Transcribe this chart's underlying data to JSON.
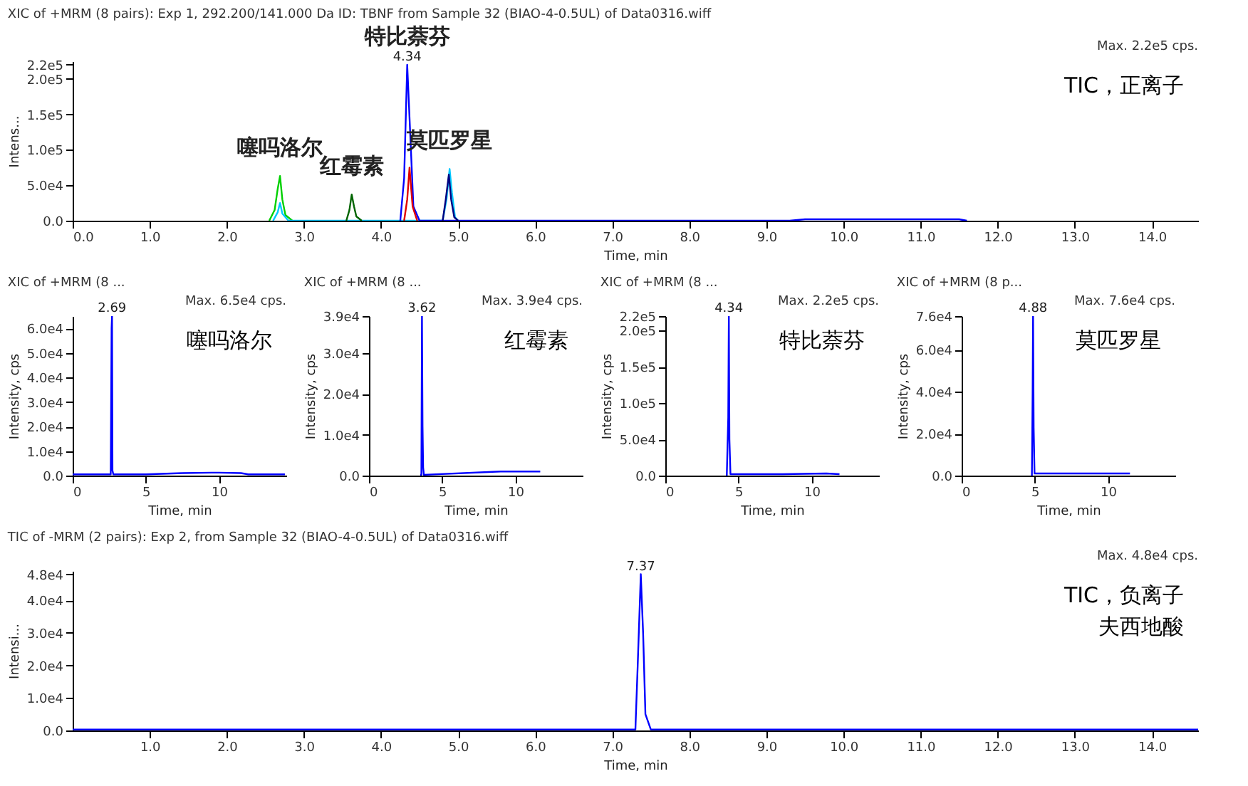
{
  "chart_data": [
    {
      "type": "line",
      "title": "XIC of +MRM (8 pairs): Exp 1, 292.200/141.000 Da ID: TBNF from Sample 32 (BIAO-4-0.5UL) of Data0316.wiff",
      "xlabel": "Time, min",
      "ylabel": "Intens...",
      "xlim": [
        0,
        14.6
      ],
      "xticks": [
        {
          "value": 0,
          "label": "0.0"
        },
        {
          "value": 1,
          "label": "1.0"
        },
        {
          "value": 2,
          "label": "2.0"
        },
        {
          "value": 3,
          "label": "3.0"
        },
        {
          "value": 4,
          "label": "4.0"
        },
        {
          "value": 5,
          "label": "5.0"
        },
        {
          "value": 6,
          "label": "6.0"
        },
        {
          "value": 7,
          "label": "7.0"
        },
        {
          "value": 8,
          "label": "8.0"
        },
        {
          "value": 9,
          "label": "9.0"
        },
        {
          "value": 10,
          "label": "10.0"
        },
        {
          "value": 11,
          "label": "11.0"
        },
        {
          "value": 12,
          "label": "12.0"
        },
        {
          "value": 13,
          "label": "13.0"
        },
        {
          "value": 14,
          "label": "14.0"
        }
      ],
      "ylim": [
        0,
        225000
      ],
      "yticks": [
        {
          "value": 0,
          "label": "0.0"
        },
        {
          "value": 50000,
          "label": "5.0e4"
        },
        {
          "value": 100000,
          "label": "1.0e5"
        },
        {
          "value": 150000,
          "label": "1.5e5"
        },
        {
          "value": 200000,
          "label": "2.0e5"
        },
        {
          "value": 220000,
          "label": "2.2e5"
        }
      ],
      "series": [
        {
          "color": "#00d000",
          "x": [
            2.55,
            2.62,
            2.66,
            2.69,
            2.72,
            2.76,
            2.85
          ],
          "values": [
            0,
            15000,
            45000,
            63000,
            30000,
            8000,
            0
          ]
        },
        {
          "color": "#00c8ff",
          "x": [
            2.6,
            2.66,
            2.69,
            2.72,
            2.8,
            4.8,
            4.85,
            4.89,
            4.92,
            4.96,
            5.0
          ],
          "values": [
            0,
            12000,
            25000,
            10000,
            0,
            0,
            30000,
            73000,
            40000,
            5000,
            0
          ]
        },
        {
          "color": "#006400",
          "x": [
            3.55,
            3.59,
            3.62,
            3.65,
            3.68,
            3.75
          ],
          "values": [
            0,
            15000,
            37000,
            20000,
            6000,
            0
          ]
        },
        {
          "color": "#0000ff",
          "x": [
            4.25,
            4.3,
            4.34,
            4.38,
            4.42,
            4.5,
            9.3,
            9.5,
            10.0,
            10.5,
            11.0,
            11.5,
            11.6
          ],
          "values": [
            0,
            60000,
            220000,
            120000,
            20000,
            0,
            0,
            2000,
            2000,
            2000,
            2000,
            2000,
            0
          ]
        },
        {
          "color": "#e00000",
          "x": [
            4.3,
            4.34,
            4.37,
            4.41,
            4.47
          ],
          "values": [
            0,
            30000,
            75000,
            20000,
            0
          ]
        },
        {
          "color": "#000080",
          "x": [
            4.8,
            4.84,
            4.88,
            4.91,
            4.95,
            5.0
          ],
          "values": [
            0,
            30000,
            65000,
            30000,
            5000,
            0
          ]
        }
      ],
      "annotations": [
        "Max. 2.2e5 cps.",
        "TIC，正离子",
        {
          "text": "4.34",
          "x": 4.34,
          "y": 220000
        },
        {
          "text": "特比萘芬",
          "x": 4.34,
          "y": 220000
        },
        {
          "text": "噻吗洛尔",
          "x": 2.69,
          "y": 63000
        },
        {
          "text": "红霉素",
          "x": 3.62,
          "y": 37000
        },
        {
          "text": "莫匹罗星",
          "x": 4.89,
          "y": 73000
        }
      ]
    },
    {
      "type": "line",
      "title": "XIC of +MRM (8 ...",
      "xlabel": "Time, min",
      "ylabel": "Intensity, cps",
      "xlim": [
        0,
        14.6
      ],
      "xticks": [
        0,
        5,
        10
      ],
      "ylim": [
        0,
        65000
      ],
      "yticks": [
        {
          "value": 0,
          "label": "0.0"
        },
        {
          "value": 10000,
          "label": "1.0e4"
        },
        {
          "value": 20000,
          "label": "2.0e4"
        },
        {
          "value": 30000,
          "label": "3.0e4"
        },
        {
          "value": 40000,
          "label": "4.0e4"
        },
        {
          "value": 50000,
          "label": "5.0e4"
        },
        {
          "value": 60000,
          "label": "6.0e4"
        }
      ],
      "series": [
        {
          "color": "#0000ff",
          "x": [
            0,
            2.6,
            2.66,
            2.69,
            2.72,
            2.78,
            5,
            7.5,
            9.5,
            10,
            11.5,
            12,
            14.5
          ],
          "values": [
            500,
            500,
            60000,
            65000,
            2000,
            500,
            500,
            1000,
            1200,
            1200,
            1000,
            500,
            500
          ]
        }
      ],
      "annotations": [
        "Max. 6.5e4 cps.",
        {
          "text": "2.69",
          "x": 2.69,
          "y": 65000
        },
        "噻吗洛尔"
      ]
    },
    {
      "type": "line",
      "title": "XIC of +MRM (8 ...",
      "xlabel": "Time, min",
      "ylabel": "Intensity, cps",
      "xlim": [
        0,
        14.6
      ],
      "xticks": [
        0,
        5,
        10
      ],
      "ylim": [
        0,
        39000
      ],
      "yticks": [
        {
          "value": 0,
          "label": "0.0"
        },
        {
          "value": 10000,
          "label": "1.0e4"
        },
        {
          "value": 20000,
          "label": "2.0e4"
        },
        {
          "value": 30000,
          "label": "3.0e4"
        },
        {
          "value": 39000,
          "label": "3.9e4"
        }
      ],
      "series": [
        {
          "color": "#0000ff",
          "x": [
            3.5,
            3.58,
            3.62,
            3.66,
            3.7,
            3.75,
            9,
            11.7
          ],
          "values": [
            200,
            200,
            39000,
            12000,
            2000,
            200,
            1000,
            1000
          ]
        }
      ],
      "annotations": [
        "Max. 3.9e4 cps.",
        {
          "text": "3.62",
          "x": 3.62,
          "y": 39000
        },
        "红霉素"
      ]
    },
    {
      "type": "line",
      "title": "XIC of +MRM (8 ...",
      "xlabel": "Time, min",
      "ylabel": "Intensity, cps",
      "xlim": [
        0,
        14.6
      ],
      "xticks": [
        0,
        5,
        10
      ],
      "ylim": [
        0,
        220000
      ],
      "yticks": [
        {
          "value": 0,
          "label": "0.0"
        },
        {
          "value": 50000,
          "label": "5.0e4"
        },
        {
          "value": 100000,
          "label": "1.0e5"
        },
        {
          "value": 150000,
          "label": "1.5e5"
        },
        {
          "value": 200000,
          "label": "2.0e5"
        },
        {
          "value": 220000,
          "label": "2.2e5"
        }
      ],
      "series": [
        {
          "color": "#0000ff",
          "x": [
            4.2,
            4.3,
            4.34,
            4.38,
            4.45,
            8,
            11,
            11.9
          ],
          "values": [
            0,
            80000,
            220000,
            50000,
            2000,
            2000,
            3000,
            2000
          ]
        }
      ],
      "annotations": [
        "Max. 2.2e5 cps.",
        {
          "text": "4.34",
          "x": 4.34,
          "y": 220000
        },
        "特比萘芬"
      ]
    },
    {
      "type": "line",
      "title": "XIC of +MRM (8 p...",
      "xlabel": "Time, min",
      "ylabel": "Intensity, cps",
      "xlim": [
        0,
        14.6
      ],
      "xticks": [
        0,
        5,
        10
      ],
      "ylim": [
        0,
        76000
      ],
      "yticks": [
        {
          "value": 0,
          "label": "0.0"
        },
        {
          "value": 20000,
          "label": "2.0e4"
        },
        {
          "value": 40000,
          "label": "4.0e4"
        },
        {
          "value": 60000,
          "label": "6.0e4"
        },
        {
          "value": 76000,
          "label": "7.6e4"
        }
      ],
      "series": [
        {
          "color": "#0000ff",
          "x": [
            4.8,
            4.85,
            4.88,
            4.92,
            4.98,
            8,
            11.5
          ],
          "values": [
            0,
            40000,
            76000,
            23000,
            1000,
            1000,
            1000
          ]
        }
      ],
      "annotations": [
        "Max. 7.6e4 cps.",
        {
          "text": "4.88",
          "x": 4.88,
          "y": 76000
        },
        "莫匹罗星"
      ]
    },
    {
      "type": "line",
      "title": "TIC of -MRM (2 pairs): Exp 2, from Sample 32 (BIAO-4-0.5UL) of Data0316.wiff",
      "xlabel": "Time, min",
      "ylabel": "Intensi...",
      "xlim": [
        0,
        14.6
      ],
      "xticks": [
        {
          "value": 1,
          "label": "1.0"
        },
        {
          "value": 2,
          "label": "2.0"
        },
        {
          "value": 3,
          "label": "3.0"
        },
        {
          "value": 4,
          "label": "4.0"
        },
        {
          "value": 5,
          "label": "5.0"
        },
        {
          "value": 6,
          "label": "6.0"
        },
        {
          "value": 7,
          "label": "7.0"
        },
        {
          "value": 8,
          "label": "8.0"
        },
        {
          "value": 9,
          "label": "9.0"
        },
        {
          "value": 10,
          "label": "10.0"
        },
        {
          "value": 11,
          "label": "11.0"
        },
        {
          "value": 12,
          "label": "12.0"
        },
        {
          "value": 13,
          "label": "13.0"
        },
        {
          "value": 14,
          "label": "14.0"
        }
      ],
      "ylim": [
        0,
        49000
      ],
      "yticks": [
        {
          "value": 0,
          "label": "0.0"
        },
        {
          "value": 10000,
          "label": "1.0e4"
        },
        {
          "value": 20000,
          "label": "2.0e4"
        },
        {
          "value": 30000,
          "label": "3.0e4"
        },
        {
          "value": 40000,
          "label": "4.0e4"
        },
        {
          "value": 48000,
          "label": "4.8e4"
        }
      ],
      "series": [
        {
          "color": "#0000ff",
          "x": [
            0,
            7.0,
            7.3,
            7.33,
            7.37,
            7.4,
            7.43,
            7.5,
            14.6
          ],
          "values": [
            300,
            300,
            300,
            20000,
            48000,
            30000,
            5000,
            300,
            300
          ]
        }
      ],
      "annotations": [
        "Max. 4.8e4 cps.",
        "TIC，负离子",
        {
          "text": "7.37",
          "x": 7.37,
          "y": 48000
        },
        "夫西地酸"
      ]
    }
  ]
}
